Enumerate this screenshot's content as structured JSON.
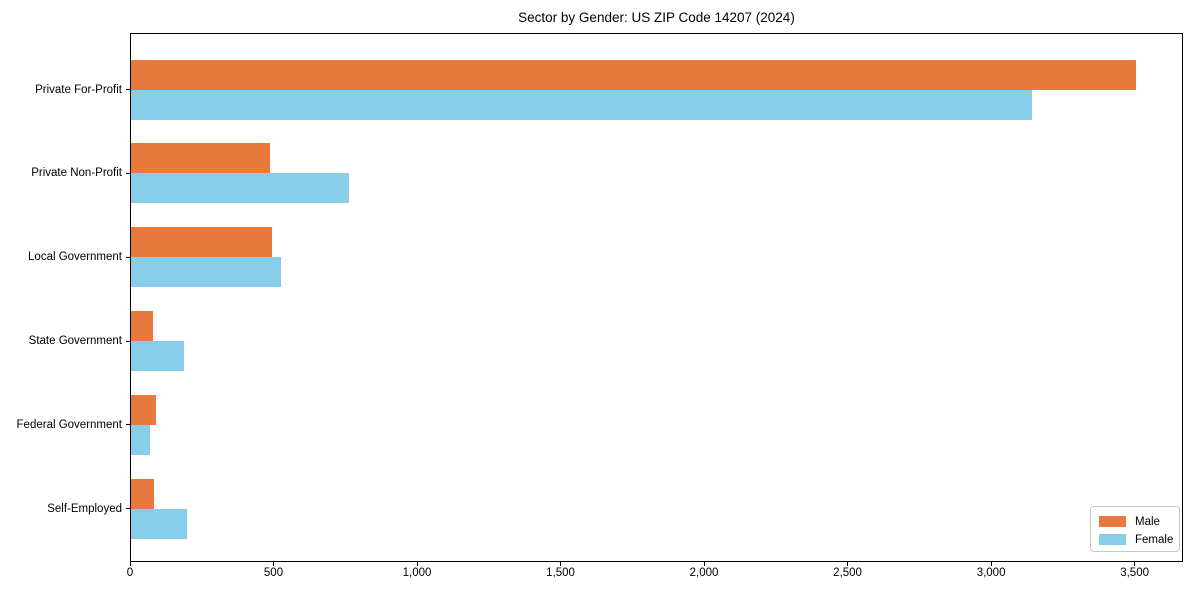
{
  "chart_data": {
    "type": "bar",
    "orientation": "horizontal",
    "title": "Sector by Gender: US ZIP Code 14207 (2024)",
    "categories": [
      "Private For-Profit",
      "Private Non-Profit",
      "Local Government",
      "State Government",
      "Federal Government",
      "Self-Employed"
    ],
    "series": [
      {
        "name": "Male",
        "color": "#e8793d",
        "values": [
          3500,
          483,
          491,
          78,
          87,
          81
        ]
      },
      {
        "name": "Female",
        "color": "#87ceeb",
        "values": [
          3140,
          761,
          523,
          186,
          65,
          194
        ]
      }
    ],
    "xlabel": "",
    "ylabel": "",
    "xlim": [
      0,
      3665
    ],
    "x_ticks": [
      0,
      500,
      1000,
      1500,
      2000,
      2500,
      3000,
      3500
    ],
    "x_tick_labels": [
      "0",
      "500",
      "1,000",
      "1,500",
      "2,000",
      "2,500",
      "3,000",
      "3,500"
    ],
    "grid": false,
    "legend": {
      "position": "lower right",
      "border_color": "#c8c8c8"
    },
    "colors": {
      "axis": "#000000",
      "background": "#ffffff"
    }
  }
}
